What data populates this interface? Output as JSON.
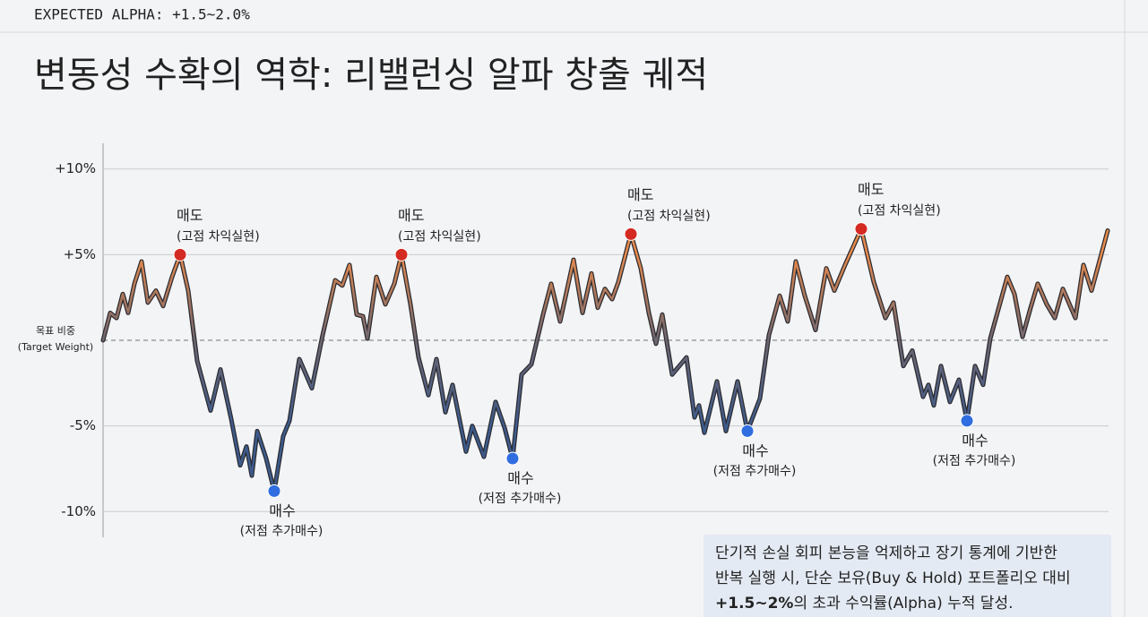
{
  "header": {
    "tag": "EXPECTED ALPHA: +1.5~2.0%"
  },
  "chart_data": {
    "type": "line",
    "title": "변동성 수확의 역학: 리밸런싱 알파 창출 궤적",
    "xlim": [
      0,
      112.2
    ],
    "ylim": [
      -11.5,
      11.5
    ],
    "yticks": [
      {
        "value": 10,
        "label": "+10%"
      },
      {
        "value": 5,
        "label": "+5%"
      },
      {
        "value": -5,
        "label": "-5%"
      },
      {
        "value": -10,
        "label": "-10%"
      }
    ],
    "grid": true,
    "target_line": {
      "value": 0,
      "label": "목표 비중",
      "sublabel": "(Target Weight)"
    },
    "series": [
      {
        "color_high": "#e88a4c",
        "color_mid": "#6e6670",
        "color_low": "#3d5b8c",
        "x": [
          0,
          0.8,
          1.5,
          2.2,
          2.8,
          3.5,
          4.3,
          5.0,
          5.9,
          6.7,
          7.7,
          8.6,
          9.5,
          10.5,
          12.0,
          13.1,
          14.3,
          15.3,
          16.0,
          16.6,
          17.2,
          18.2,
          19.1,
          20.1,
          20.8,
          21.9,
          23.3,
          24.5,
          25.9,
          26.7,
          27.5,
          28.3,
          29.0,
          29.5,
          30.5,
          31.5,
          32.5,
          33.3,
          34.3,
          35.2,
          36.3,
          37.2,
          38.2,
          39.0,
          40.5,
          41.2,
          42.5,
          43.8,
          44.8,
          45.7,
          46.7,
          47.8,
          49.1,
          50.0,
          51.0,
          52.5,
          53.5,
          54.5,
          55.2,
          56.0,
          56.8,
          57.5,
          58.9,
          60.0,
          60.9,
          61.7,
          62.4,
          63.5,
          65.1,
          66.0,
          66.5,
          67.1,
          68.5,
          69.5,
          70.8,
          71.9,
          73.3,
          74.3,
          75.5,
          76.4,
          77.3,
          78.3,
          79.5,
          80.7,
          81.6,
          82.8,
          84.6,
          86.0,
          87.3,
          88.2,
          89.3,
          90.3,
          91.5,
          92.1,
          92.7,
          93.5,
          94.5,
          95.5,
          96.4,
          97.3,
          98.2,
          99.0,
          100.9,
          101.7,
          102.6,
          103.5,
          104.3,
          105.3,
          106.2,
          107.1,
          108.5,
          109.4,
          110.3,
          112.1
        ],
        "values": [
          0.0,
          1.6,
          1.3,
          2.7,
          1.6,
          3.3,
          4.6,
          2.2,
          2.9,
          2.0,
          3.7,
          5.0,
          2.9,
          -1.2,
          -4.1,
          -1.7,
          -4.6,
          -7.3,
          -6.2,
          -7.9,
          -5.3,
          -6.9,
          -8.8,
          -5.6,
          -4.7,
          -1.1,
          -2.8,
          0.3,
          3.5,
          3.2,
          4.4,
          1.5,
          1.4,
          0.1,
          3.7,
          2.1,
          3.3,
          5.0,
          2.1,
          -1.0,
          -3.2,
          -1.1,
          -4.2,
          -2.6,
          -6.5,
          -5.0,
          -6.8,
          -3.6,
          -5.1,
          -6.9,
          -2.0,
          -1.4,
          1.5,
          3.3,
          1.1,
          4.7,
          1.6,
          3.9,
          1.9,
          3.0,
          2.4,
          3.4,
          6.2,
          4.2,
          1.6,
          -0.2,
          1.5,
          -2.0,
          -1.0,
          -4.5,
          -3.8,
          -5.4,
          -2.4,
          -5.3,
          -2.4,
          -5.3,
          -3.4,
          0.3,
          2.6,
          1.1,
          4.6,
          2.6,
          0.6,
          4.2,
          2.9,
          4.4,
          6.5,
          3.4,
          1.3,
          2.2,
          -1.5,
          -0.6,
          -3.3,
          -2.6,
          -3.8,
          -1.5,
          -3.6,
          -2.3,
          -4.7,
          -1.5,
          -2.6,
          0.1,
          3.7,
          2.7,
          0.2,
          1.9,
          3.3,
          2.1,
          1.3,
          3.0,
          1.3,
          4.4,
          2.9,
          6.4
        ]
      }
    ],
    "points": [
      {
        "kind": "sell",
        "color": "#d42a22",
        "x": 8.6,
        "y": 5.0,
        "label": "매도",
        "sublabel": "(고점 차익실현)"
      },
      {
        "kind": "buy",
        "color": "#2f6de0",
        "x": 19.1,
        "y": -8.8,
        "label": "매수",
        "sublabel": "(저점 추가매수)"
      },
      {
        "kind": "sell",
        "color": "#d42a22",
        "x": 33.3,
        "y": 5.0,
        "label": "매도",
        "sublabel": "(고점 차익실현)"
      },
      {
        "kind": "buy",
        "color": "#2f6de0",
        "x": 45.7,
        "y": -6.9,
        "label": "매수",
        "sublabel": "(저점 추가매수)"
      },
      {
        "kind": "sell",
        "color": "#d42a22",
        "x": 58.9,
        "y": 6.2,
        "label": "매도",
        "sublabel": "(고점 차익실현)"
      },
      {
        "kind": "buy",
        "color": "#2f6de0",
        "x": 71.9,
        "y": -5.3,
        "label": "매수",
        "sublabel": "(저점 추가매수)"
      },
      {
        "kind": "sell",
        "color": "#d42a22",
        "x": 84.6,
        "y": 6.5,
        "label": "매도",
        "sublabel": "(고점 차익실현)"
      },
      {
        "kind": "buy",
        "color": "#2f6de0",
        "x": 96.4,
        "y": -4.7,
        "label": "매수",
        "sublabel": "(저점 추가매수)"
      }
    ],
    "note": {
      "lines": [
        [
          {
            "text": "단기적 손실 회피 본능을 억제하고 장기 통계에 기반한"
          }
        ],
        [
          {
            "text": "반복 실행 시, 단순 보유(Buy & Hold) 포트폴리오 대비"
          }
        ],
        [
          {
            "text": "+1.5~2%",
            "bold": true
          },
          {
            "text": "의 초과 수익률(Alpha) 누적 달성."
          }
        ]
      ]
    }
  }
}
